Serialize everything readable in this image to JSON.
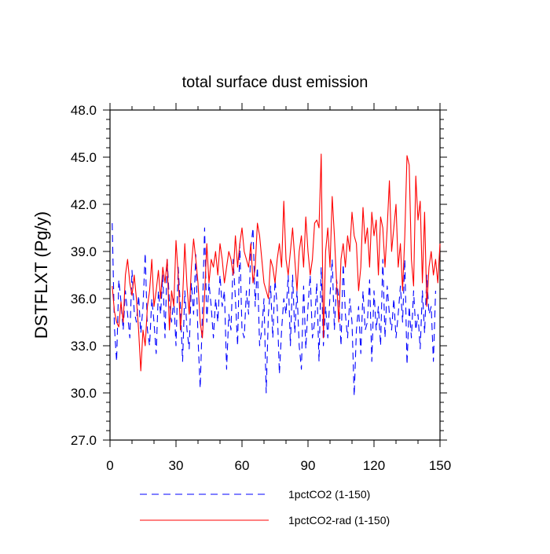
{
  "chart_data": {
    "type": "line",
    "title": "total surface dust emission",
    "ylabel": "DSTFLXT  (Pg/y)",
    "xlabel": "",
    "xlim": [
      0,
      150
    ],
    "ylim": [
      27.0,
      48.0
    ],
    "x_ticks": [
      0,
      30,
      60,
      90,
      120,
      150
    ],
    "x_tick_labels": [
      "0",
      "30",
      "60",
      "90",
      "120",
      "150"
    ],
    "y_ticks": [
      27.0,
      30.0,
      33.0,
      36.0,
      39.0,
      42.0,
      45.0,
      48.0
    ],
    "y_tick_labels": [
      "27.0",
      "30.0",
      "33.0",
      "36.0",
      "39.0",
      "42.0",
      "45.0",
      "48.0"
    ],
    "grid": false,
    "legend_position": "bottom",
    "series": [
      {
        "name": "1pctCO2 (1-150)",
        "color": "#0000ff",
        "style": "dashed",
        "x_start": 1,
        "values": [
          40.8,
          34.2,
          32.0,
          37.2,
          35.8,
          34.0,
          36.5,
          35.0,
          33.5,
          37.8,
          35.2,
          34.5,
          36.2,
          33.8,
          35.5,
          38.9,
          34.0,
          33.0,
          36.0,
          34.5,
          32.5,
          36.5,
          35.0,
          37.5,
          33.5,
          38.5,
          35.8,
          34.5,
          36.0,
          33.0,
          38.0,
          35.5,
          32.0,
          36.5,
          34.0,
          32.8,
          37.0,
          35.0,
          38.8,
          33.5,
          30.3,
          35.0,
          40.5,
          34.5,
          37.0,
          35.5,
          33.5,
          36.0,
          34.5,
          37.5,
          35.5,
          36.5,
          31.5,
          35.0,
          34.0,
          38.5,
          36.0,
          33.0,
          39.5,
          34.0,
          33.5,
          36.5,
          35.0,
          39.2,
          40.5,
          35.5,
          38.0,
          33.0,
          34.0,
          36.0,
          30.0,
          35.0,
          36.8,
          33.5,
          37.2,
          35.5,
          31.2,
          34.0,
          36.0,
          35.0,
          37.5,
          33.0,
          37.5,
          33.8,
          36.5,
          33.0,
          31.5,
          36.8,
          32.8,
          35.5,
          37.5,
          33.5,
          34.5,
          37.0,
          32.0,
          38.0,
          33.0,
          35.5,
          33.5,
          36.2,
          38.5,
          34.0,
          37.2,
          36.0,
          33.0,
          38.2,
          35.0,
          33.5,
          36.0,
          34.5,
          29.8,
          34.0,
          35.5,
          32.5,
          36.5,
          34.0,
          34.5,
          37.2,
          32.0,
          36.5,
          34.0,
          35.5,
          33.0,
          38.5,
          33.5,
          36.8,
          35.0,
          34.0,
          36.0,
          33.5,
          35.0,
          36.8,
          34.5,
          38.5,
          31.8,
          35.5,
          33.5,
          36.5,
          34.0,
          35.0,
          32.8,
          36.5,
          33.8,
          37.5,
          35.0,
          35.5,
          32.0,
          36.5
        ]
      },
      {
        "name": "1pctCO2-rad (1-150)",
        "color": "#ff0000",
        "style": "solid",
        "x_start": 1,
        "values": [
          36.8,
          35.2,
          34.5,
          34.2,
          35.8,
          34.5,
          37.5,
          38.5,
          37.0,
          36.2,
          37.5,
          36.0,
          34.0,
          31.4,
          34.0,
          33.0,
          35.5,
          36.5,
          38.5,
          35.5,
          36.5,
          37.8,
          36.0,
          38.0,
          37.0,
          38.5,
          34.0,
          36.5,
          35.5,
          39.7,
          37.5,
          34.0,
          36.0,
          39.5,
          36.8,
          35.0,
          38.0,
          39.8,
          38.5,
          37.0,
          34.5,
          33.5,
          36.2,
          39.5,
          37.0,
          38.5,
          38.0,
          39.0,
          37.5,
          39.5,
          38.5,
          37.0,
          38.0,
          39.0,
          38.5,
          37.5,
          40.0,
          38.0,
          39.5,
          40.5,
          39.0,
          38.5,
          38.0,
          39.5,
          37.0,
          38.0,
          40.8,
          40.0,
          38.5,
          37.0,
          36.5,
          36.0,
          38.5,
          38.0,
          37.0,
          38.5,
          39.5,
          38.0,
          42.2,
          38.5,
          37.5,
          39.0,
          40.5,
          38.5,
          36.5,
          39.0,
          40.0,
          38.0,
          41.2,
          39.0,
          37.5,
          38.5,
          40.8,
          41.0,
          40.5,
          45.2,
          33.5,
          39.0,
          40.5,
          38.0,
          42.5,
          40.0,
          37.0,
          34.5,
          38.5,
          39.5,
          38.0,
          40.0,
          39.0,
          41.5,
          40.0,
          39.5,
          36.5,
          38.0,
          41.8,
          39.5,
          40.5,
          38.0,
          41.5,
          40.0,
          41.0,
          37.5,
          41.2,
          40.5,
          38.0,
          40.5,
          43.5,
          39.0,
          40.5,
          42.0,
          38.0,
          39.5,
          36.5,
          40.0,
          45.1,
          44.5,
          38.5,
          36.8,
          43.8,
          41.0,
          42.2,
          37.0,
          41.5,
          35.5,
          38.0,
          39.0,
          37.5,
          38.5,
          37.0,
          39.5
        ]
      }
    ]
  }
}
